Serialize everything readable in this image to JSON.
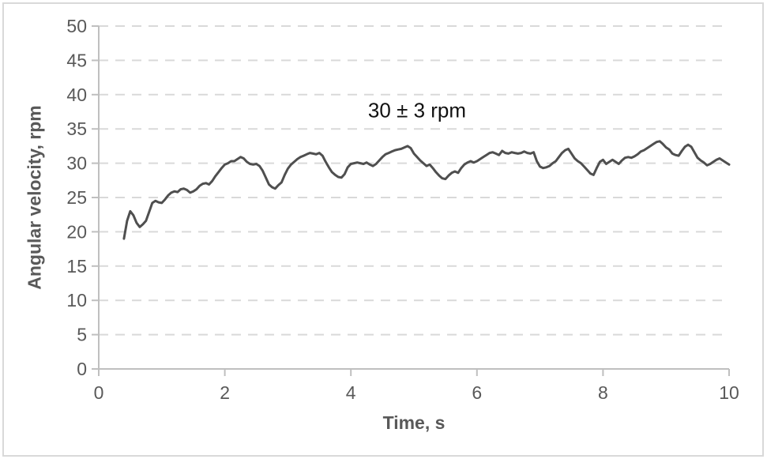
{
  "window": {
    "background": "#ffffff",
    "frame_border_color": "#d9d9d9"
  },
  "chart_data": {
    "type": "line",
    "title": "",
    "xlabel": "Time, s",
    "ylabel": "Angular velocity, rpm",
    "annotation": {
      "text": "30 ± 3 rpm",
      "x": 5.05,
      "y": 37.7
    },
    "xlim": [
      0,
      10
    ],
    "ylim": [
      0,
      50
    ],
    "xticks": [
      0,
      2,
      4,
      6,
      8,
      10
    ],
    "yticks": [
      0,
      5,
      10,
      15,
      20,
      25,
      30,
      35,
      40,
      45,
      50
    ],
    "grid": {
      "horizontal": true,
      "vertical": false,
      "style": "dashed",
      "color": "#d9d9d9"
    },
    "legend": "none",
    "axis_color": "#bfbfbf",
    "tick_label_color": "#595959",
    "series": [
      {
        "name": "angular velocity",
        "color": "#4f4f4f",
        "x_start": 0.4,
        "x_step": 0.05,
        "values": [
          19.0,
          21.6,
          23.0,
          22.4,
          21.3,
          20.7,
          21.1,
          21.6,
          22.9,
          24.2,
          24.5,
          24.3,
          24.2,
          24.7,
          25.3,
          25.7,
          25.9,
          25.8,
          26.2,
          26.3,
          26.1,
          25.7,
          25.9,
          26.2,
          26.7,
          27.0,
          27.1,
          26.9,
          27.4,
          28.1,
          28.7,
          29.3,
          29.8,
          30.0,
          30.3,
          30.3,
          30.6,
          30.9,
          30.7,
          30.2,
          29.9,
          29.8,
          29.9,
          29.6,
          28.9,
          27.9,
          26.9,
          26.5,
          26.3,
          26.8,
          27.2,
          28.3,
          29.2,
          29.8,
          30.2,
          30.6,
          30.9,
          31.1,
          31.3,
          31.5,
          31.4,
          31.3,
          31.5,
          31.1,
          30.2,
          29.4,
          28.7,
          28.3,
          28.0,
          27.9,
          28.4,
          29.4,
          29.9,
          30.0,
          30.1,
          30.0,
          29.9,
          30.1,
          29.8,
          29.6,
          29.9,
          30.4,
          30.9,
          31.3,
          31.5,
          31.7,
          31.9,
          32.0,
          32.1,
          32.3,
          32.5,
          32.2,
          31.4,
          30.9,
          30.4,
          30.0,
          29.6,
          29.8,
          29.3,
          28.7,
          28.2,
          27.8,
          27.7,
          28.2,
          28.6,
          28.8,
          28.6,
          29.3,
          29.8,
          30.1,
          30.3,
          30.1,
          30.3,
          30.6,
          30.9,
          31.2,
          31.5,
          31.6,
          31.4,
          31.2,
          31.8,
          31.5,
          31.4,
          31.6,
          31.5,
          31.4,
          31.5,
          31.7,
          31.5,
          31.4,
          31.6,
          30.3,
          29.5,
          29.3,
          29.4,
          29.6,
          30.0,
          30.3,
          30.9,
          31.5,
          31.9,
          32.1,
          31.4,
          30.7,
          30.3,
          30.0,
          29.5,
          29.0,
          28.5,
          28.3,
          29.3,
          30.2,
          30.5,
          29.9,
          30.2,
          30.5,
          30.2,
          29.9,
          30.4,
          30.8,
          30.9,
          30.8,
          31.0,
          31.3,
          31.7,
          31.9,
          32.2,
          32.5,
          32.8,
          33.1,
          33.2,
          32.8,
          32.3,
          32.0,
          31.4,
          31.2,
          31.1,
          31.8,
          32.4,
          32.7,
          32.4,
          31.6,
          30.8,
          30.4,
          30.1,
          29.7,
          29.9,
          30.2,
          30.5,
          30.7,
          30.4,
          30.1,
          29.8
        ]
      }
    ]
  }
}
